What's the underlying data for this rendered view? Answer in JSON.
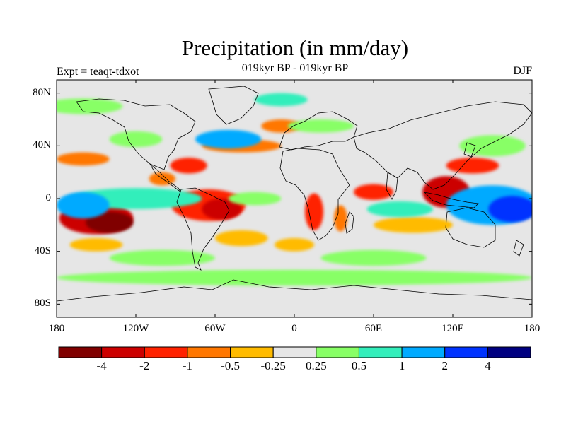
{
  "title": "Precipitation (in mm/day)",
  "subtitle": "019kyr BP - 019kyr BP",
  "experiment_label": "Expt = teaqt-tdxot",
  "season": "DJF",
  "map": {
    "projection": "cylindrical-equidistant",
    "lon_range": [
      -180,
      180
    ],
    "lat_range": [
      -90,
      90
    ],
    "background_color": "#e6e6e6",
    "lat_ticks": [
      {
        "value": 80,
        "label": "80N"
      },
      {
        "value": 40,
        "label": "40N"
      },
      {
        "value": 0,
        "label": "0"
      },
      {
        "value": -40,
        "label": "40S"
      },
      {
        "value": -80,
        "label": "80S"
      }
    ],
    "lon_ticks": [
      {
        "value": -180,
        "label": "180"
      },
      {
        "value": -120,
        "label": "120W"
      },
      {
        "value": -60,
        "label": "60W"
      },
      {
        "value": 0,
        "label": "0"
      },
      {
        "value": 60,
        "label": "60E"
      },
      {
        "value": 120,
        "label": "120E"
      },
      {
        "value": 180,
        "label": "180"
      }
    ],
    "anomaly_regions": [
      {
        "lon": -150,
        "lat": -15,
        "rlon": 28,
        "rlat": 12,
        "level": -4
      },
      {
        "lon": -140,
        "lat": -18,
        "rlon": 18,
        "rlat": 8,
        "level": -5
      },
      {
        "lon": -65,
        "lat": -5,
        "rlon": 28,
        "rlat": 12,
        "level": -3
      },
      {
        "lon": -55,
        "lat": -8,
        "rlon": 15,
        "rlat": 8,
        "level": -4
      },
      {
        "lon": -80,
        "lat": 25,
        "rlon": 14,
        "rlat": 6,
        "level": -3
      },
      {
        "lon": -100,
        "lat": 15,
        "rlon": 10,
        "rlat": 5,
        "level": -2
      },
      {
        "lon": -40,
        "lat": 40,
        "rlon": 30,
        "rlat": 5,
        "level": -2
      },
      {
        "lon": -10,
        "lat": 55,
        "rlon": 15,
        "rlat": 5,
        "level": -2
      },
      {
        "lon": 15,
        "lat": -10,
        "rlon": 7,
        "rlat": 14,
        "level": -3
      },
      {
        "lon": 35,
        "lat": -15,
        "rlon": 5,
        "rlat": 10,
        "level": -2
      },
      {
        "lon": 60,
        "lat": 5,
        "rlon": 15,
        "rlat": 6,
        "level": -3
      },
      {
        "lon": 115,
        "lat": 5,
        "rlon": 18,
        "rlat": 12,
        "level": -4
      },
      {
        "lon": 135,
        "lat": 25,
        "rlon": 20,
        "rlat": 6,
        "level": -3
      },
      {
        "lon": -160,
        "lat": 30,
        "rlon": 20,
        "rlat": 5,
        "level": -2
      },
      {
        "lon": 90,
        "lat": -20,
        "rlon": 30,
        "rlat": 6,
        "level": -1
      },
      {
        "lon": -150,
        "lat": -35,
        "rlon": 20,
        "rlat": 5,
        "level": -1
      },
      {
        "lon": -40,
        "lat": -30,
        "rlon": 20,
        "rlat": 6,
        "level": -1
      },
      {
        "lon": 0,
        "lat": -35,
        "rlon": 15,
        "rlat": 5,
        "level": -1
      },
      {
        "lon": -120,
        "lat": 0,
        "rlon": 50,
        "rlat": 8,
        "level": 2
      },
      {
        "lon": -160,
        "lat": -5,
        "rlon": 20,
        "rlat": 10,
        "level": 3
      },
      {
        "lon": -50,
        "lat": 45,
        "rlon": 25,
        "rlat": 7,
        "level": 3
      },
      {
        "lon": 150,
        "lat": -5,
        "rlon": 35,
        "rlat": 15,
        "level": 3
      },
      {
        "lon": 165,
        "lat": -8,
        "rlon": 18,
        "rlat": 10,
        "level": 4
      },
      {
        "lon": 80,
        "lat": -8,
        "rlon": 25,
        "rlat": 6,
        "level": 2
      },
      {
        "lon": -30,
        "lat": 0,
        "rlon": 20,
        "rlat": 5,
        "level": 1
      },
      {
        "lon": -120,
        "lat": 45,
        "rlon": 20,
        "rlat": 6,
        "level": 1
      },
      {
        "lon": 0,
        "lat": -60,
        "rlon": 180,
        "rlat": 6,
        "level": 1
      },
      {
        "lon": 60,
        "lat": -45,
        "rlon": 40,
        "rlat": 6,
        "level": 1
      },
      {
        "lon": -100,
        "lat": -45,
        "rlon": 40,
        "rlat": 6,
        "level": 1
      },
      {
        "lon": 150,
        "lat": 40,
        "rlon": 25,
        "rlat": 8,
        "level": 1
      },
      {
        "lon": -160,
        "lat": 70,
        "rlon": 30,
        "rlat": 6,
        "level": 1
      },
      {
        "lon": -10,
        "lat": 75,
        "rlon": 20,
        "rlat": 5,
        "level": 2
      },
      {
        "lon": 20,
        "lat": 55,
        "rlon": 25,
        "rlat": 5,
        "level": 1
      }
    ]
  },
  "colorbar": {
    "colors": [
      "#800000",
      "#cc0000",
      "#ff2200",
      "#ff7700",
      "#ffbb00",
      "#e6e6e6",
      "#88ff66",
      "#33eebb",
      "#00aaff",
      "#0033ff",
      "#000080"
    ],
    "labels": [
      "-4",
      "-2",
      "-1",
      "-0.5",
      "-0.25",
      "0.25",
      "0.5",
      "1",
      "2",
      "4"
    ]
  }
}
